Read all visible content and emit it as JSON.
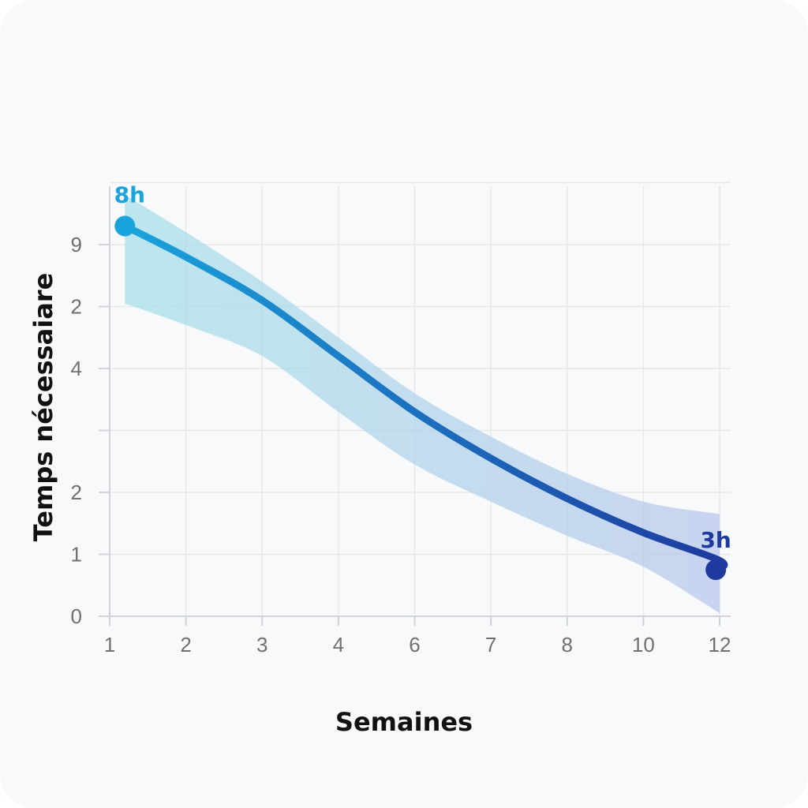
{
  "chart_data": {
    "type": "line",
    "xlabel": "Semaines",
    "ylabel": "Temps nécessaiare",
    "x_ticks": [
      "1",
      "2",
      "3",
      "4",
      "6",
      "7",
      "8",
      "10",
      "12"
    ],
    "y_ticks": [
      "0",
      "1",
      "2",
      "",
      "4",
      "2",
      "9"
    ],
    "grid": true,
    "series": [
      {
        "x_positions": [
          0.2,
          1.0,
          2.0,
          3.0,
          4.0,
          5.0,
          6.0,
          7.0,
          8.0,
          8.0
        ],
        "y_positions": [
          6.3,
          5.8,
          5.1,
          4.2,
          3.3,
          2.55,
          1.9,
          1.35,
          0.9,
          0.75
        ],
        "note_x_index": "x_positions are indices along the printed tick sequence"
      }
    ],
    "band": {
      "upper": [
        6.8,
        6.2,
        5.4,
        4.5,
        3.6,
        2.9,
        2.3,
        1.85,
        1.65
      ],
      "lower": [
        5.05,
        4.7,
        4.2,
        3.3,
        2.45,
        1.85,
        1.3,
        0.8,
        0.05
      ]
    },
    "annotations": [
      {
        "text": "8h",
        "color": "#1aa3dc"
      },
      {
        "text": "3h",
        "color": "#1e3a9e"
      }
    ],
    "colors": {
      "line_start": "#1aa3dc",
      "line_end": "#1e3a9e",
      "band_start": "#a8e0ea",
      "band_end": "#b9c8ec",
      "grid": "#e6e8ea",
      "axis": "#cfd2d6"
    }
  }
}
